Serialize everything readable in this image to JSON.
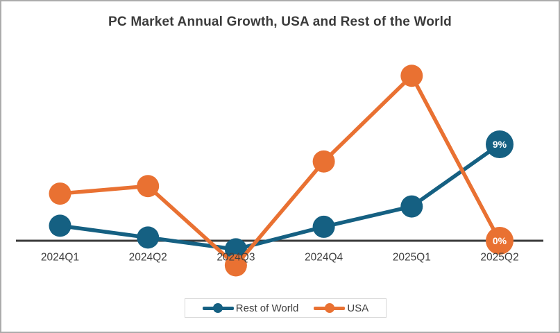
{
  "title": "PC Market Annual Growth, USA and Rest of the World",
  "colors": {
    "rest_of_world": "#156082",
    "usa": "#E97132",
    "axis_line": "#3A3A3A",
    "tick_text": "#404040",
    "title_text": "#3B3B3B",
    "point_label_text": "#FFFFFF",
    "legend_border": "#D9D9D9",
    "page_border": "#ABABAB",
    "background": "#FFFFFF"
  },
  "legend": {
    "position": "bottom",
    "items": [
      {
        "label": "Rest of World",
        "color": "#156082"
      },
      {
        "label": "USA",
        "color": "#E97132"
      }
    ]
  },
  "chart_data": {
    "type": "line",
    "title": "PC Market Annual Growth, USA and Rest of the World",
    "categories": [
      "2024Q1",
      "2024Q2",
      "2024Q3",
      "2024Q4",
      "2025Q1",
      "2025Q2"
    ],
    "series": [
      {
        "name": "Rest of World",
        "color": "#156082",
        "values": [
          1.4,
          0.3,
          -0.8,
          1.3,
          3.2,
          9
        ],
        "point_labels": {
          "5": "9%"
        }
      },
      {
        "name": "USA",
        "color": "#E97132",
        "values": [
          4.4,
          5.1,
          -2.3,
          7.4,
          15.4,
          0
        ],
        "point_labels": {
          "5": "0%"
        }
      }
    ],
    "xlabel": "",
    "ylabel": "",
    "unit": "percent",
    "ylim": [
      -3,
      16
    ],
    "grid": false,
    "y_axis_labels_visible": false,
    "legend_position": "bottom",
    "visible_data_labels": [
      "9%",
      "0%"
    ]
  }
}
